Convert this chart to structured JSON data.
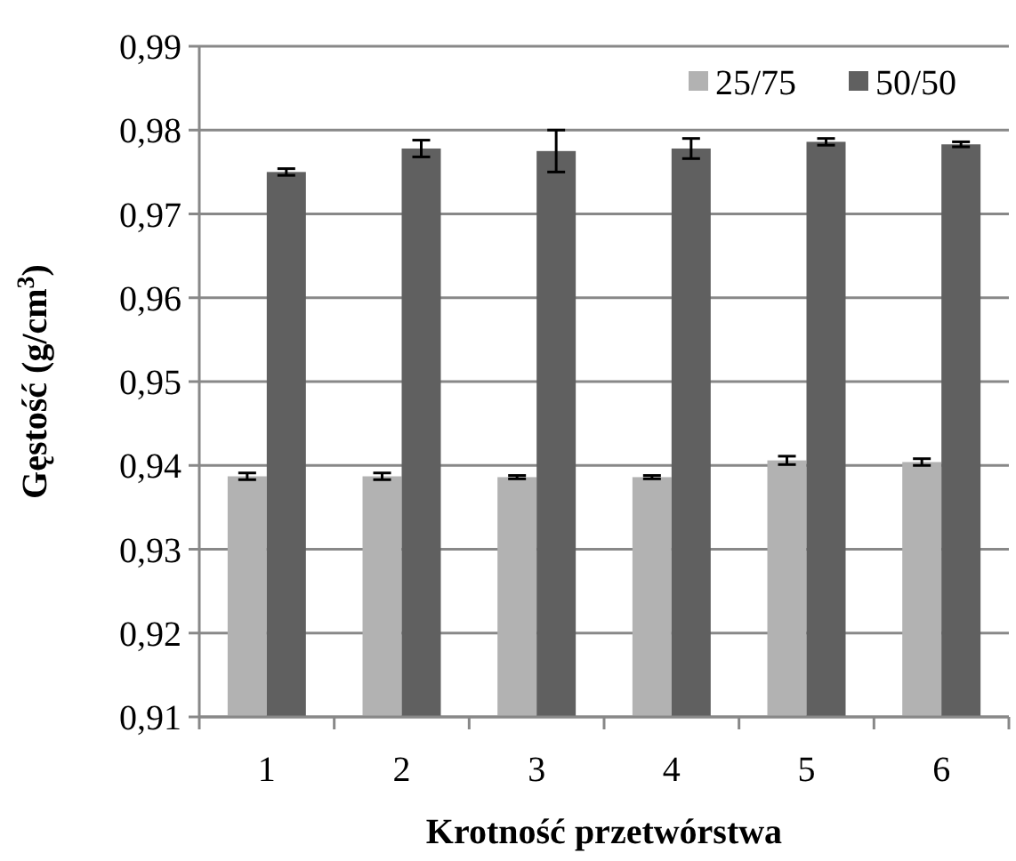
{
  "chart_data": {
    "type": "bar",
    "xlabel": "Krotność przetwórstwa",
    "ylabel": "Gęstość (g/cm$^{3}$)",
    "categories": [
      "1",
      "2",
      "3",
      "4",
      "5",
      "6"
    ],
    "series": [
      {
        "name": "25/75",
        "color": "#b2b2b2",
        "values": [
          0.9387,
          0.9387,
          0.9386,
          0.9386,
          0.9406,
          0.9404
        ],
        "errors": [
          0.0004,
          0.0004,
          0.0002,
          0.0002,
          0.0005,
          0.0004
        ]
      },
      {
        "name": "50/50",
        "color": "#606060",
        "values": [
          0.975,
          0.9778,
          0.9775,
          0.9778,
          0.9786,
          0.9783
        ],
        "errors": [
          0.0004,
          0.001,
          0.0025,
          0.0012,
          0.0004,
          0.0003
        ]
      }
    ],
    "ylim": [
      0.91,
      0.99
    ],
    "yticks": [
      {
        "value": 0.91,
        "label": "0,91"
      },
      {
        "value": 0.92,
        "label": "0,92"
      },
      {
        "value": 0.93,
        "label": "0,93"
      },
      {
        "value": 0.94,
        "label": "0,94"
      },
      {
        "value": 0.95,
        "label": "0,95"
      },
      {
        "value": 0.96,
        "label": "0,96"
      },
      {
        "value": 0.97,
        "label": "0,97"
      },
      {
        "value": 0.98,
        "label": "0,98"
      },
      {
        "value": 0.99,
        "label": "0,99"
      }
    ],
    "grid": "y",
    "legend": "top right"
  }
}
